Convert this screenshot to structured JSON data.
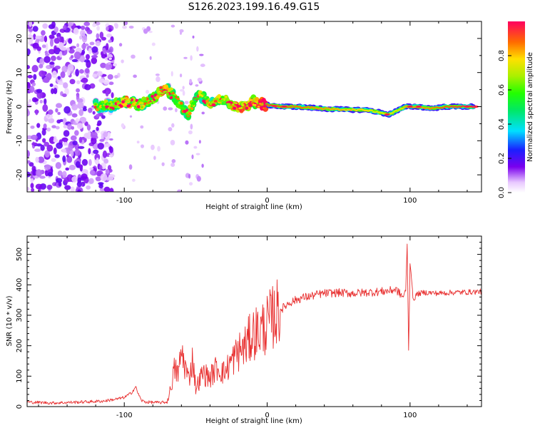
{
  "title": "S126.2023.199.16.49.G15",
  "chart_data": [
    {
      "type": "heatmap",
      "xlabel": "Height of straight line (km)",
      "ylabel": "Frequency (Hz)",
      "xlim": [
        -168,
        150
      ],
      "ylim": [
        -25,
        25
      ],
      "xticks": [
        -100,
        0,
        100
      ],
      "yticks": [
        -20,
        -10,
        0,
        10,
        20
      ],
      "colorbar": {
        "label": "Normalized spectral amplitude",
        "ticks": [
          "0.0",
          "0.2",
          "0.4",
          "0.6",
          "0.8"
        ],
        "range": [
          0,
          1
        ]
      },
      "ridge": [
        {
          "x": -120,
          "f": 0.3,
          "a": 0.45
        },
        {
          "x": -110,
          "f": 0.2,
          "a": 0.45
        },
        {
          "x": -100,
          "f": 1.5,
          "a": 0.6
        },
        {
          "x": -90,
          "f": 0.5,
          "a": 0.5
        },
        {
          "x": -80,
          "f": 2.0,
          "a": 0.55
        },
        {
          "x": -72,
          "f": 5.5,
          "a": 0.55
        },
        {
          "x": -65,
          "f": 3.0,
          "a": 0.45
        },
        {
          "x": -55,
          "f": -2.5,
          "a": 0.5
        },
        {
          "x": -50,
          "f": 3.5,
          "a": 0.45
        },
        {
          "x": -40,
          "f": 1.5,
          "a": 0.55
        },
        {
          "x": -30,
          "f": 2.0,
          "a": 0.5
        },
        {
          "x": -20,
          "f": -0.5,
          "a": 0.6
        },
        {
          "x": -10,
          "f": 1.5,
          "a": 0.65
        },
        {
          "x": -5,
          "f": 0.8,
          "a": 0.7
        },
        {
          "x": 0,
          "f": 0.5,
          "a": 0.8
        },
        {
          "x": 10,
          "f": 0.0,
          "a": 0.78
        },
        {
          "x": 20,
          "f": 0.0,
          "a": 0.76
        },
        {
          "x": 30,
          "f": -0.3,
          "a": 0.74
        },
        {
          "x": 40,
          "f": -0.6,
          "a": 0.72
        },
        {
          "x": 50,
          "f": -0.8,
          "a": 0.7
        },
        {
          "x": 60,
          "f": -0.9,
          "a": 0.68
        },
        {
          "x": 70,
          "f": -1.0,
          "a": 0.66
        },
        {
          "x": 77,
          "f": -1.5,
          "a": 0.62
        },
        {
          "x": 85,
          "f": -2.3,
          "a": 0.65
        },
        {
          "x": 92,
          "f": -1.0,
          "a": 0.6
        },
        {
          "x": 97,
          "f": 0.0,
          "a": 0.72
        },
        {
          "x": 105,
          "f": 0.0,
          "a": 0.72
        },
        {
          "x": 115,
          "f": -0.5,
          "a": 0.74
        },
        {
          "x": 125,
          "f": 0.0,
          "a": 0.78
        },
        {
          "x": 135,
          "f": 0.0,
          "a": 0.82
        },
        {
          "x": 145,
          "f": 0.0,
          "a": 0.88
        }
      ]
    },
    {
      "type": "line",
      "xlabel": "Height of straight line (km)",
      "ylabel": "SNR (10 * v/v)",
      "xlim": [
        -168,
        150
      ],
      "ylim": [
        0,
        560
      ],
      "xticks": [
        -100,
        0,
        100
      ],
      "yticks": [
        0,
        100,
        200,
        300,
        400,
        500
      ],
      "color": "#e83030",
      "x": [
        -168,
        -150,
        -130,
        -115,
        -105,
        -100,
        -95,
        -92,
        -90,
        -88,
        -85,
        -80,
        -75,
        -70,
        -68,
        -65,
        -62,
        -60,
        -55,
        -52,
        -50,
        -45,
        -40,
        -35,
        -30,
        -25,
        -20,
        -15,
        -10,
        -5,
        0,
        5,
        10,
        15,
        20,
        25,
        30,
        35,
        40,
        50,
        60,
        70,
        80,
        85,
        90,
        95,
        97,
        98,
        99,
        100,
        101,
        102,
        105,
        110,
        120,
        130,
        140,
        150
      ],
      "y": [
        15,
        12,
        15,
        18,
        25,
        30,
        45,
        65,
        40,
        20,
        15,
        14,
        13,
        15,
        50,
        120,
        110,
        180,
        90,
        160,
        60,
        110,
        95,
        130,
        110,
        150,
        180,
        200,
        240,
        250,
        270,
        300,
        320,
        340,
        350,
        358,
        362,
        368,
        372,
        374,
        372,
        375,
        378,
        380,
        385,
        360,
        380,
        540,
        180,
        470,
        430,
        350,
        370,
        375,
        372,
        375,
        376,
        378
      ]
    }
  ]
}
